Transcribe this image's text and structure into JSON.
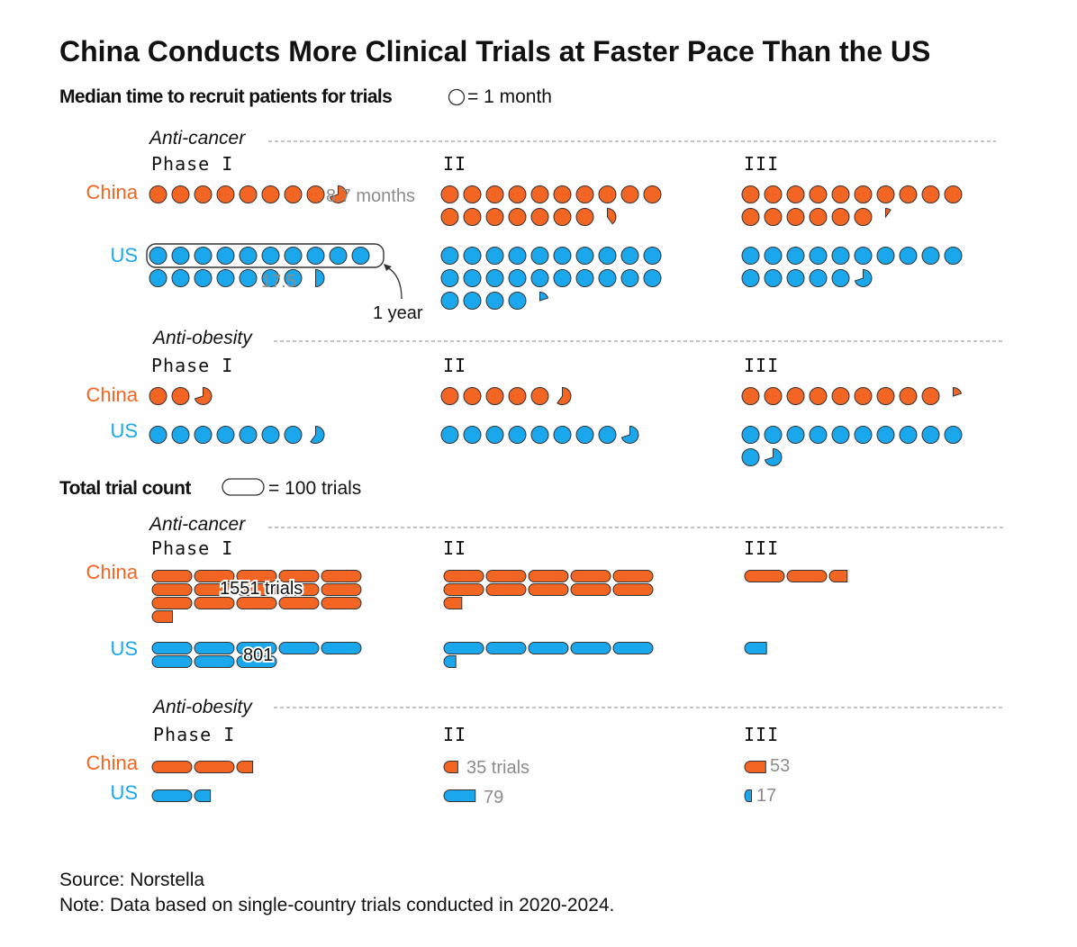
{
  "title": "China Conducts More Clinical Trials at Faster Pace Than the US",
  "source": "Source: Norstella",
  "note": "Note: Data based on single-country trials conducted in 2020-2024.",
  "colors": {
    "china": "#f26522",
    "us": "#1aa7ec",
    "outline": "#333333",
    "annotation": "#8c8c8c"
  },
  "countries": [
    "China",
    "US"
  ],
  "phases": [
    "Phase I",
    "II",
    "III"
  ],
  "areas": [
    "Anti-cancer",
    "Anti-obesity"
  ],
  "recruit_legend": {
    "heading": "Median time to recruit patients for trials",
    "unit_text": "= 1 month"
  },
  "count_legend": {
    "heading": "Total trial count",
    "unit_text": "= 100 trials"
  },
  "annotations": {
    "china_cancer_phase1_months": "8.7 months",
    "us_cancer_phase1_months": "17.5",
    "one_year": "1 year",
    "china_cancer_phase1_trials": "1551 trials",
    "us_cancer_phase1_trials": "801",
    "china_obesity_phase2_trials": "35 trials",
    "us_obesity_phase2_trials": "79",
    "china_obesity_phase3_trials": "53",
    "us_obesity_phase3_trials": "17"
  },
  "chart_data": [
    {
      "type": "unit",
      "title": "Median time to recruit patients for trials",
      "unit": "month",
      "categories": [
        "Phase I",
        "II",
        "III"
      ],
      "panels": [
        {
          "area": "Anti-cancer",
          "series": [
            {
              "name": "China",
              "values": [
                8.7,
                17.4,
                16.1
              ]
            },
            {
              "name": "US",
              "values": [
                17.5,
                24.2,
                15.7
              ]
            }
          ]
        },
        {
          "area": "Anti-obesity",
          "series": [
            {
              "name": "China",
              "values": [
                2.7,
                5.6,
                9.2
              ]
            },
            {
              "name": "US",
              "values": [
                7.6,
                8.7,
                11.7
              ]
            }
          ]
        }
      ]
    },
    {
      "type": "unit",
      "title": "Total trial count",
      "unit": "100 trials",
      "categories": [
        "Phase I",
        "II",
        "III"
      ],
      "panels": [
        {
          "area": "Anti-cancer",
          "series": [
            {
              "name": "China",
              "values": [
                1551,
                1045,
                245
              ]
            },
            {
              "name": "US",
              "values": [
                801,
                530,
                55
              ]
            }
          ]
        },
        {
          "area": "Anti-obesity",
          "series": [
            {
              "name": "China",
              "values": [
                240,
                35,
                53
              ]
            },
            {
              "name": "US",
              "values": [
                140,
                79,
                17
              ]
            }
          ]
        }
      ]
    }
  ]
}
